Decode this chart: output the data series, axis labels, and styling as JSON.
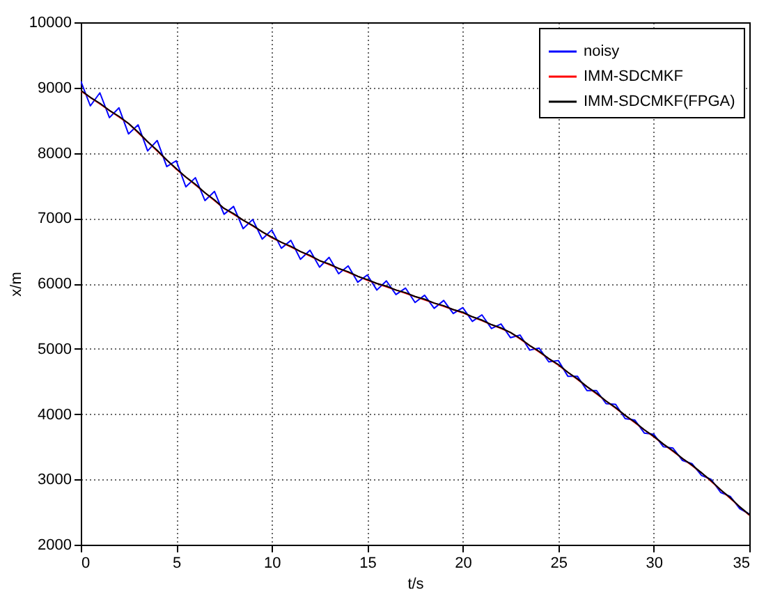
{
  "chart_data": {
    "type": "line",
    "xlabel": "t/s",
    "ylabel": "x/m",
    "x": [
      0,
      0.5,
      1,
      1.5,
      2,
      2.5,
      3,
      3.5,
      4,
      4.5,
      5,
      5.5,
      6,
      6.5,
      7,
      7.5,
      8,
      8.5,
      9,
      9.5,
      10,
      10.5,
      11,
      11.5,
      12,
      12.5,
      13,
      13.5,
      14,
      14.5,
      15,
      15.5,
      16,
      16.5,
      17,
      17.5,
      18,
      18.5,
      19,
      19.5,
      20,
      20.5,
      21,
      21.5,
      22,
      22.5,
      23,
      23.5,
      24,
      24.5,
      25,
      25.5,
      26,
      26.5,
      27,
      27.5,
      28,
      28.5,
      29,
      29.5,
      30,
      30.5,
      31,
      31.5,
      32,
      32.5,
      33,
      33.5,
      34,
      34.5,
      35
    ],
    "series": [
      {
        "name": "noisy",
        "color": "#0000ff",
        "values": [
          9100,
          8720,
          8920,
          8540,
          8690,
          8290,
          8430,
          8030,
          8190,
          7790,
          7880,
          7480,
          7620,
          7270,
          7410,
          7060,
          7180,
          6840,
          6980,
          6680,
          6820,
          6540,
          6660,
          6370,
          6510,
          6250,
          6400,
          6150,
          6270,
          6020,
          6130,
          5900,
          6040,
          5830,
          5930,
          5710,
          5820,
          5620,
          5740,
          5540,
          5630,
          5420,
          5520,
          5310,
          5380,
          5170,
          5210,
          4980,
          5010,
          4800,
          4820,
          4580,
          4580,
          4360,
          4360,
          4160,
          4150,
          3930,
          3910,
          3710,
          3690,
          3500,
          3480,
          3290,
          3240,
          3060,
          3000,
          2800,
          2740,
          2550,
          2470
        ]
      },
      {
        "name": "IMM-SDCMKF",
        "color": "#ff0000",
        "values": [
          8950,
          8850,
          8750,
          8650,
          8550,
          8450,
          8310,
          8170,
          8030,
          7890,
          7750,
          7630,
          7510,
          7390,
          7270,
          7150,
          7060,
          6970,
          6880,
          6790,
          6700,
          6630,
          6560,
          6490,
          6420,
          6350,
          6290,
          6230,
          6170,
          6110,
          6050,
          6000,
          5950,
          5900,
          5850,
          5800,
          5750,
          5700,
          5650,
          5600,
          5550,
          5490,
          5430,
          5370,
          5310,
          5250,
          5150,
          5050,
          4950,
          4850,
          4750,
          4640,
          4530,
          4420,
          4310,
          4200,
          4090,
          3980,
          3870,
          3760,
          3650,
          3540,
          3430,
          3320,
          3210,
          3100,
          2970,
          2840,
          2710,
          2580,
          2450
        ]
      },
      {
        "name": "IMM-SDCMKF(FPGA)",
        "color": "#000000",
        "values": [
          8960,
          8850,
          8760,
          8650,
          8560,
          8450,
          8320,
          8170,
          8040,
          7890,
          7760,
          7630,
          7520,
          7390,
          7280,
          7150,
          7070,
          6970,
          6890,
          6790,
          6710,
          6630,
          6570,
          6490,
          6430,
          6350,
          6300,
          6230,
          6180,
          6110,
          6060,
          6000,
          5960,
          5900,
          5860,
          5800,
          5760,
          5700,
          5660,
          5600,
          5560,
          5490,
          5440,
          5370,
          5320,
          5250,
          5160,
          5050,
          4960,
          4850,
          4760,
          4640,
          4540,
          4420,
          4320,
          4200,
          4100,
          3980,
          3880,
          3760,
          3660,
          3540,
          3440,
          3320,
          3220,
          3100,
          2980,
          2840,
          2720,
          2580,
          2460
        ]
      }
    ],
    "xlim": [
      0,
      35
    ],
    "xticks": [
      0,
      5,
      10,
      15,
      20,
      25,
      30,
      35
    ],
    "ylim": [
      2000,
      10000
    ],
    "yticks": [
      2000,
      3000,
      4000,
      5000,
      6000,
      7000,
      8000,
      9000,
      10000
    ],
    "grid": true,
    "legend": "top right"
  }
}
